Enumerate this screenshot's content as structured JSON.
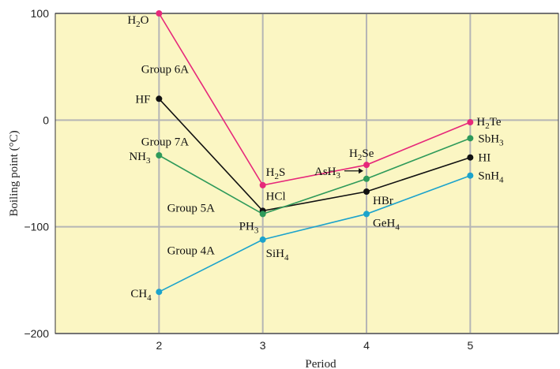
{
  "colors": {
    "plot_background": "#fbf6c3",
    "grid": "#b5b5b5",
    "axis": "#333333"
  },
  "chart_data": {
    "type": "line",
    "xlabel": "Period",
    "ylabel": "Boiling point (°C)",
    "xlim": [
      1,
      5.85
    ],
    "ylim": [
      -200,
      100
    ],
    "x_ticks": [
      2,
      3,
      4,
      5
    ],
    "y_ticks": [
      100,
      0,
      -100,
      -200
    ],
    "y_tick_labels": [
      "100",
      "0",
      "−100",
      "−200"
    ],
    "grid": true,
    "group_labels": [
      {
        "text": "Group 6A",
        "series": "6A",
        "at": [
          2.3,
          48
        ]
      },
      {
        "text": "Group 7A",
        "series": "7A",
        "at": [
          2.3,
          -20
        ]
      },
      {
        "text": "Group 5A",
        "series": "5A",
        "at": [
          2.55,
          -82
        ]
      },
      {
        "text": "Group 4A",
        "series": "4A",
        "at": [
          2.55,
          -122
        ]
      }
    ],
    "series": [
      {
        "name": "Group 6A",
        "color": "#e6287a",
        "x": [
          2,
          3,
          4,
          5
        ],
        "y": [
          100,
          -61,
          -42,
          -2
        ],
        "labels": [
          {
            "base": "H",
            "sub": "2",
            "rest": "O"
          },
          {
            "base": "H",
            "sub": "2",
            "rest": "S"
          },
          {
            "base": "H",
            "sub": "2",
            "rest": "Se"
          },
          {
            "base": "H",
            "sub": "2",
            "rest": "Te"
          }
        ]
      },
      {
        "name": "Group 7A",
        "color": "#111111",
        "x": [
          2,
          3,
          4,
          5
        ],
        "y": [
          20,
          -85,
          -67,
          -35
        ],
        "labels": [
          {
            "base": "HF",
            "sub": "",
            "rest": ""
          },
          {
            "base": "HCl",
            "sub": "",
            "rest": ""
          },
          {
            "base": "HBr",
            "sub": "",
            "rest": ""
          },
          {
            "base": "HI",
            "sub": "",
            "rest": ""
          }
        ]
      },
      {
        "name": "Group 5A",
        "color": "#2e9a5a",
        "x": [
          2,
          3,
          4,
          5
        ],
        "y": [
          -33,
          -88,
          -55,
          -17
        ],
        "labels": [
          {
            "base": "NH",
            "sub": "3",
            "rest": ""
          },
          {
            "base": "PH",
            "sub": "3",
            "rest": ""
          },
          {
            "base": "AsH",
            "sub": "3",
            "rest": ""
          },
          {
            "base": "SbH",
            "sub": "3",
            "rest": ""
          }
        ]
      },
      {
        "name": "Group 4A",
        "color": "#1ba3cc",
        "x": [
          2,
          3,
          4,
          5
        ],
        "y": [
          -161,
          -112,
          -88,
          -52
        ],
        "labels": [
          {
            "base": "CH",
            "sub": "4",
            "rest": ""
          },
          {
            "base": "SiH",
            "sub": "4",
            "rest": ""
          },
          {
            "base": "GeH",
            "sub": "4",
            "rest": ""
          },
          {
            "base": "SnH",
            "sub": "4",
            "rest": ""
          }
        ]
      }
    ]
  }
}
